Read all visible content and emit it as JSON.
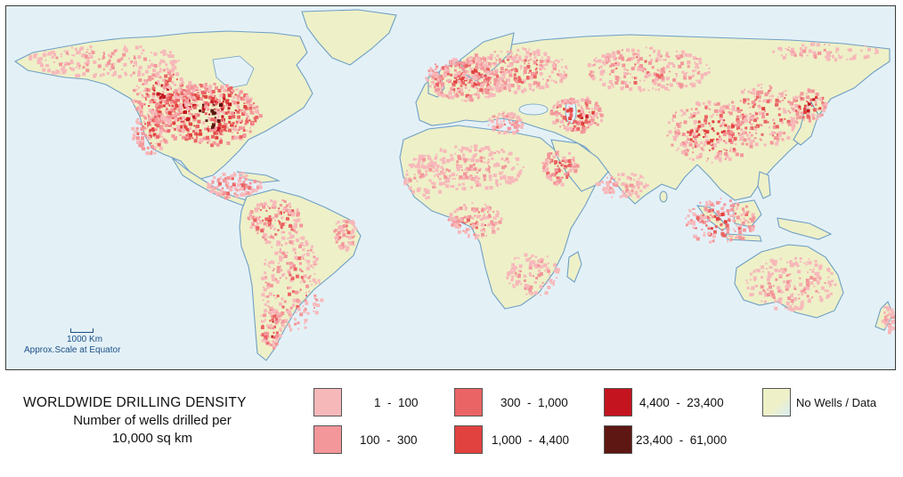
{
  "map": {
    "scale": {
      "distance_label": "1000 Km",
      "caption": "Approx.Scale at Equator"
    },
    "colors": {
      "ocean": "#e3f1f7",
      "land_no_data": "#eef0c8",
      "coastline": "#6f9fc4"
    }
  },
  "legend": {
    "title_line1": "WORLDWIDE DRILLING DENSITY",
    "title_line2": "Number of wells drilled per",
    "title_line3": "10,000 sq km",
    "classes": [
      {
        "label": "1  -  100",
        "color": "#f7b8ba"
      },
      {
        "label": "100  -  300",
        "color": "#f3979a"
      },
      {
        "label": "300  -  1,000",
        "color": "#eb6465"
      },
      {
        "label": "1,000  -  4,400",
        "color": "#e2423f"
      },
      {
        "label": "4,400  -  23,400",
        "color": "#c3141f"
      },
      {
        "label": "23,400  -  61,000",
        "color": "#5e1712"
      }
    ],
    "no_data_label": "No Wells / Data"
  }
}
